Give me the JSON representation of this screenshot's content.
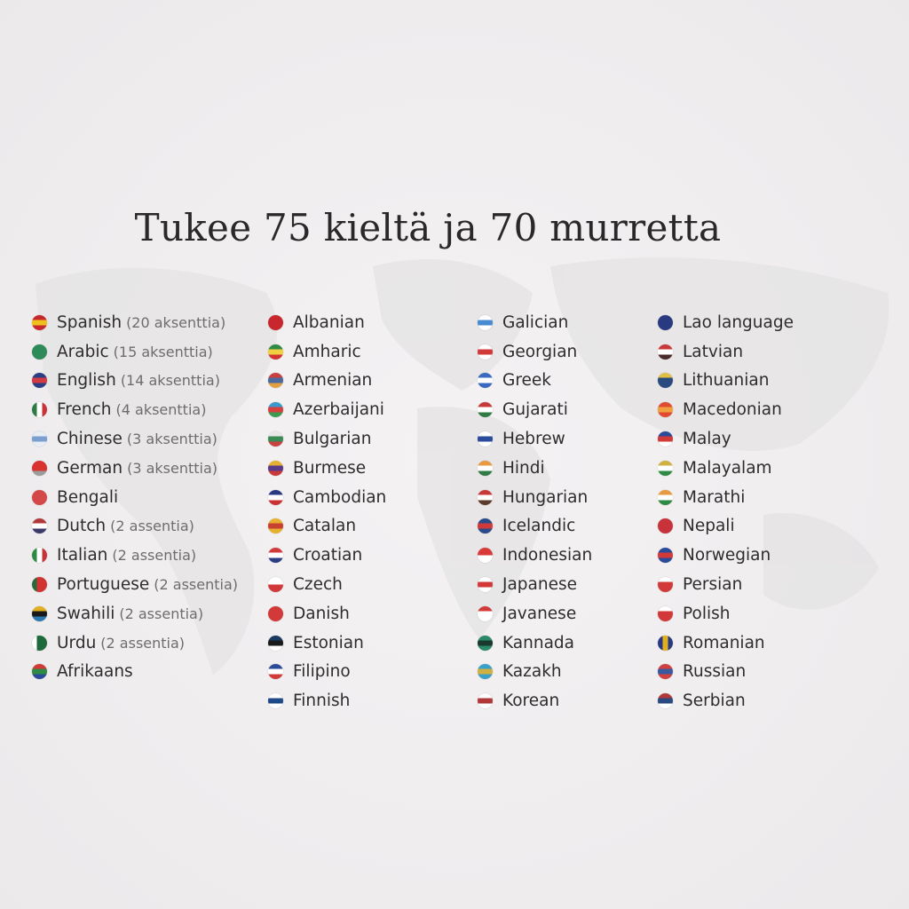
{
  "title": "Tukee 75 kieltä ja 70 murretta",
  "columns": [
    [
      {
        "name": "Spanish",
        "note": "(20 aksenttia)",
        "flag": [
          "#c8282d",
          "#f0c020",
          "#c8282d"
        ]
      },
      {
        "name": "Arabic",
        "note": "(15 aksenttia)",
        "flag": [
          "#2f8a5a",
          "#2f8a5a"
        ]
      },
      {
        "name": "English",
        "note": "(14 aksenttia)",
        "flag": [
          "#2c3e83",
          "#d23a44",
          "#2c3e83"
        ]
      },
      {
        "name": "French",
        "note": "(4 aksenttia)",
        "flag": [
          "#2f7a43",
          "#ffffff",
          "#c8323a"
        ],
        "dir": "v"
      },
      {
        "name": "Chinese",
        "note": "(3 aksenttia)",
        "flag": [
          "#e8eef6",
          "#7a9fd0",
          "#e8eef6"
        ]
      },
      {
        "name": "German",
        "note": "(3 aksenttia)",
        "flag": [
          "#d8332f",
          "#d8332f",
          "#9c9c9c"
        ]
      },
      {
        "name": "Bengali",
        "note": "",
        "flag": [
          "#d44848",
          "#d44848"
        ]
      },
      {
        "name": "Dutch",
        "note": "(2 assentia)",
        "flag": [
          "#b03a3a",
          "#ffffff",
          "#3a3a6a"
        ]
      },
      {
        "name": "Italian",
        "note": "(2 assentia)",
        "flag": [
          "#2f8a45",
          "#ffffff",
          "#c8323a"
        ],
        "dir": "v"
      },
      {
        "name": "Portuguese",
        "note": "(2 assentia)",
        "flag": [
          "#2a6a3a",
          "#d23232",
          "#d23232"
        ],
        "dir": "v"
      },
      {
        "name": "Swahili",
        "note": "(2 assentia)",
        "flag": [
          "#e0b020",
          "#1a1a1a",
          "#2a7ab0"
        ]
      },
      {
        "name": "Urdu",
        "note": "(2 assentia)",
        "flag": [
          "#ffffff",
          "#1f6a3a",
          "#1f6a3a"
        ],
        "dir": "v"
      },
      {
        "name": "Afrikaans",
        "note": "",
        "flag": [
          "#d23a3a",
          "#2f8a45",
          "#2c4a9a"
        ]
      }
    ],
    [
      {
        "name": "Albanian",
        "note": "",
        "flag": [
          "#c8282d",
          "#c8282d"
        ]
      },
      {
        "name": "Amharic",
        "note": "",
        "flag": [
          "#2f8a45",
          "#f0d040",
          "#d23232"
        ]
      },
      {
        "name": "Armenian",
        "note": "",
        "flag": [
          "#c84040",
          "#4a6aa0",
          "#e0a040"
        ]
      },
      {
        "name": "Azerbaijani",
        "note": "",
        "flag": [
          "#3a9ad0",
          "#d84040",
          "#3a9a50"
        ]
      },
      {
        "name": "Bulgarian",
        "note": "",
        "flag": [
          "#e8e8e8",
          "#3a8a55",
          "#c84040"
        ]
      },
      {
        "name": "Burmese",
        "note": "",
        "flag": [
          "#e8b030",
          "#5a3a8a",
          "#c83a3a"
        ]
      },
      {
        "name": "Cambodian",
        "note": "",
        "flag": [
          "#2a3a80",
          "#ffffff",
          "#c83232"
        ]
      },
      {
        "name": "Catalan",
        "note": "",
        "flag": [
          "#e8b030",
          "#c84030",
          "#e8b030"
        ]
      },
      {
        "name": "Croatian",
        "note": "",
        "flag": [
          "#d23a3a",
          "#ffffff",
          "#2c3e83"
        ]
      },
      {
        "name": "Czech",
        "note": "",
        "flag": [
          "#ffffff",
          "#d23a3a"
        ]
      },
      {
        "name": "Danish",
        "note": "",
        "flag": [
          "#d23a3a",
          "#d23a3a"
        ]
      },
      {
        "name": "Estonian",
        "note": "",
        "flag": [
          "#1a3a60",
          "#1a1a1a",
          "#ffffff"
        ]
      },
      {
        "name": "Filipino",
        "note": "",
        "flag": [
          "#2a4a9a",
          "#ffffff",
          "#d23a3a"
        ]
      },
      {
        "name": "Finnish",
        "note": "",
        "flag": [
          "#ffffff",
          "#1f4a8a",
          "#ffffff"
        ]
      }
    ],
    [
      {
        "name": "Galician",
        "note": "",
        "flag": [
          "#ffffff",
          "#4a8ad0",
          "#ffffff"
        ]
      },
      {
        "name": "Georgian",
        "note": "",
        "flag": [
          "#ffffff",
          "#d23a3a",
          "#ffffff"
        ]
      },
      {
        "name": "Greek",
        "note": "",
        "flag": [
          "#3a6ac0",
          "#ffffff",
          "#3a6ac0"
        ]
      },
      {
        "name": "Gujarati",
        "note": "",
        "flag": [
          "#c83a3a",
          "#ffffff",
          "#2f7a45"
        ]
      },
      {
        "name": "Hebrew",
        "note": "",
        "flag": [
          "#ffffff",
          "#2a4a9a",
          "#ffffff"
        ]
      },
      {
        "name": "Hindi",
        "note": "",
        "flag": [
          "#e89a40",
          "#ffffff",
          "#2f7a45"
        ]
      },
      {
        "name": "Hungarian",
        "note": "",
        "flag": [
          "#c83a3a",
          "#ffffff",
          "#5a3a2a"
        ]
      },
      {
        "name": "Icelandic",
        "note": "",
        "flag": [
          "#2a4a8a",
          "#d23a3a",
          "#2a4a8a"
        ]
      },
      {
        "name": "Indonesian",
        "note": "",
        "flag": [
          "#d83a3a",
          "#ffffff"
        ]
      },
      {
        "name": "Japanese",
        "note": "",
        "flag": [
          "#ffffff",
          "#d23a3a",
          "#ffffff"
        ]
      },
      {
        "name": "Javanese",
        "note": "",
        "flag": [
          "#d23a3a",
          "#ffffff",
          "#ffffff"
        ]
      },
      {
        "name": "Kannada",
        "note": "",
        "flag": [
          "#2a8a6a",
          "#1a3a30",
          "#2a8a6a"
        ]
      },
      {
        "name": "Kazakh",
        "note": "",
        "flag": [
          "#3aa0c8",
          "#d0b040",
          "#3aa0c8"
        ]
      },
      {
        "name": "Korean",
        "note": "",
        "flag": [
          "#ffffff",
          "#b03a3a",
          "#ffffff"
        ]
      }
    ],
    [
      {
        "name": "Lao language",
        "note": "",
        "flag": [
          "#2a3a80",
          "#2a3a80"
        ]
      },
      {
        "name": "Latvian",
        "note": "",
        "flag": [
          "#c83a3a",
          "#ffffff",
          "#4a2a2a"
        ]
      },
      {
        "name": "Lithuanian",
        "note": "",
        "flag": [
          "#e0c040",
          "#2a4a80",
          "#2a4a80"
        ]
      },
      {
        "name": "Macedonian",
        "note": "",
        "flag": [
          "#e04a30",
          "#f0a040",
          "#e04a30"
        ]
      },
      {
        "name": "Malay",
        "note": "",
        "flag": [
          "#2a4a9a",
          "#d23a3a",
          "#ffffff"
        ]
      },
      {
        "name": "Malayalam",
        "note": "",
        "flag": [
          "#d0b040",
          "#ffffff",
          "#2f8a45"
        ]
      },
      {
        "name": "Marathi",
        "note": "",
        "flag": [
          "#e89a40",
          "#ffffff",
          "#2f8a45"
        ]
      },
      {
        "name": "Nepali",
        "note": "",
        "flag": [
          "#c8323a",
          "#c8323a"
        ]
      },
      {
        "name": "Norwegian",
        "note": "",
        "flag": [
          "#2a4a9a",
          "#d23a3a",
          "#2a4a9a"
        ]
      },
      {
        "name": "Persian",
        "note": "",
        "flag": [
          "#ffffff",
          "#d23a3a",
          "#d23a3a"
        ]
      },
      {
        "name": "Polish",
        "note": "",
        "flag": [
          "#ffffff",
          "#d23a3a",
          "#d23a3a"
        ]
      },
      {
        "name": "Romanian",
        "note": "",
        "flag": [
          "#2a3a80",
          "#e0b020",
          "#2a3a80"
        ],
        "dir": "v"
      },
      {
        "name": "Russian",
        "note": "",
        "flag": [
          "#d04040",
          "#3a5aa0",
          "#d04040"
        ]
      },
      {
        "name": "Serbian",
        "note": "",
        "flag": [
          "#b03a3a",
          "#2a4a80",
          "#ffffff"
        ]
      }
    ]
  ]
}
